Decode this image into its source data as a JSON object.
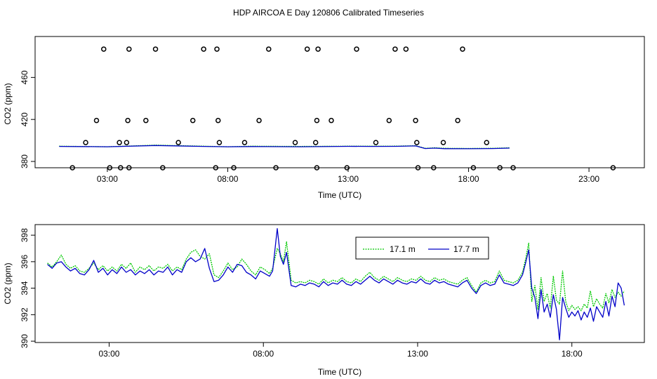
{
  "title": "HDP AIRCOA E  Day 120806  Calibrated Timeseries",
  "colors": {
    "green": "#00c800",
    "blue": "#0000c8",
    "frame": "#000000"
  },
  "chart_data": [
    {
      "type": "line",
      "xlabel": "Time (UTC)",
      "ylabel": "CO2 (ppm)",
      "xlim": [
        0,
        25.3
      ],
      "ylim": [
        374,
        499
      ],
      "x_ticks": [
        3,
        8,
        13,
        18,
        23
      ],
      "x_tick_labels": [
        "03:00",
        "08:00",
        "13:00",
        "18:00",
        "23:00"
      ],
      "y_ticks": [
        380,
        420,
        460
      ],
      "y_tick_labels": [
        "380",
        "420",
        "460"
      ],
      "calibration_points": {
        "x": [
          1.55,
          2.1,
          2.55,
          2.85,
          3.1,
          3.5,
          3.55,
          3.8,
          3.85,
          3.9,
          3.9,
          4.6,
          5.0,
          5.3,
          5.95,
          6.55,
          7.0,
          7.5,
          7.55,
          7.6,
          7.65,
          8.25,
          8.7,
          9.3,
          9.7,
          10.0,
          10.8,
          11.3,
          11.65,
          11.7,
          11.7,
          11.75,
          12.3,
          12.95,
          13.35,
          14.15,
          14.7,
          14.95,
          15.4,
          15.8,
          15.85,
          15.9,
          16.55,
          16.95,
          17.55,
          17.75,
          18.2,
          18.75,
          19.3,
          19.85,
          24.0
        ],
        "y": [
          374,
          398,
          419,
          487,
          374,
          398,
          374,
          398,
          419,
          487,
          374,
          419,
          487,
          374,
          398,
          419,
          487,
          374,
          487,
          419,
          398,
          374,
          398,
          419,
          487,
          374,
          398,
          487,
          398,
          419,
          374,
          487,
          419,
          374,
          487,
          398,
          419,
          487,
          487,
          419,
          398,
          374,
          374,
          398,
          419,
          487,
          374,
          398,
          374,
          374,
          374
        ]
      },
      "series": [
        {
          "name": "17.1 m",
          "color": "#00c800",
          "x": [
            1.0,
            3.0,
            5.0,
            7.0,
            8.0,
            9.0,
            11.0,
            13.0,
            14.0,
            15.0,
            15.8,
            16.2,
            16.6,
            17.0,
            18.0,
            19.0,
            19.7
          ],
          "values": [
            394.5,
            394.0,
            395.5,
            394.5,
            394.0,
            394.5,
            394.3,
            394.5,
            394.5,
            394.6,
            395.0,
            392.5,
            393.0,
            392.5,
            392.4,
            392.5,
            393.0
          ]
        },
        {
          "name": "17.7 m",
          "color": "#0000c8",
          "x": [
            1.0,
            3.0,
            5.0,
            7.0,
            8.0,
            9.0,
            11.0,
            13.0,
            14.0,
            15.0,
            15.8,
            16.2,
            16.6,
            17.0,
            18.0,
            19.0,
            19.7
          ],
          "values": [
            394.3,
            394.0,
            395.2,
            394.3,
            394.0,
            394.2,
            394.0,
            394.4,
            394.3,
            394.4,
            394.8,
            392.3,
            392.7,
            392.2,
            392.1,
            392.3,
            392.7
          ]
        }
      ]
    },
    {
      "type": "line",
      "xlabel": "Time (UTC)",
      "ylabel": "CO2 (ppm)",
      "xlim": [
        0.6,
        20.35
      ],
      "ylim": [
        389.9,
        398.8
      ],
      "x_ticks": [
        3,
        8,
        13,
        18
      ],
      "x_tick_labels": [
        "03:00",
        "08:00",
        "13:00",
        "18:00"
      ],
      "y_ticks": [
        390,
        392,
        394,
        396,
        398
      ],
      "y_tick_labels": [
        "390",
        "392",
        "394",
        "396",
        "398"
      ],
      "legend": {
        "position": "top-center",
        "entries": [
          "17.1 m",
          "17.7 m"
        ]
      },
      "series": [
        {
          "name": "17.1 m",
          "color": "#00c800",
          "x": [
            1.0,
            1.15,
            1.3,
            1.45,
            1.6,
            1.75,
            1.9,
            2.05,
            2.2,
            2.35,
            2.5,
            2.65,
            2.8,
            2.95,
            3.1,
            3.25,
            3.4,
            3.55,
            3.7,
            3.85,
            4.0,
            4.15,
            4.3,
            4.45,
            4.6,
            4.75,
            4.9,
            5.05,
            5.2,
            5.35,
            5.5,
            5.65,
            5.8,
            5.95,
            6.1,
            6.25,
            6.4,
            6.55,
            6.7,
            6.85,
            7.0,
            7.15,
            7.3,
            7.45,
            7.6,
            7.75,
            7.9,
            8.05,
            8.2,
            8.3,
            8.45,
            8.55,
            8.65,
            8.75,
            8.9,
            9.05,
            9.2,
            9.35,
            9.5,
            9.65,
            9.8,
            9.95,
            10.1,
            10.25,
            10.4,
            10.55,
            10.7,
            10.85,
            11.0,
            11.15,
            11.3,
            11.45,
            11.6,
            11.75,
            11.9,
            12.05,
            12.2,
            12.35,
            12.5,
            12.65,
            12.8,
            12.95,
            13.1,
            13.25,
            13.4,
            13.55,
            13.7,
            13.85,
            14.0,
            14.15,
            14.3,
            14.45,
            14.6,
            14.75,
            14.9,
            15.05,
            15.2,
            15.35,
            15.5,
            15.65,
            15.8,
            15.95,
            16.1,
            16.25,
            16.4,
            16.5,
            16.6,
            16.7,
            16.8,
            16.9,
            17.0,
            17.1,
            17.2,
            17.3,
            17.4,
            17.5,
            17.6,
            17.7,
            17.8,
            17.9,
            18.0,
            18.1,
            18.2,
            18.3,
            18.4,
            18.5,
            18.6,
            18.7,
            18.8,
            18.9,
            19.0,
            19.1,
            19.2,
            19.3,
            19.4,
            19.5,
            19.6,
            19.7
          ],
          "values": [
            395.9,
            395.6,
            396.0,
            396.5,
            395.8,
            395.5,
            395.7,
            395.3,
            395.2,
            395.5,
            395.9,
            395.4,
            395.7,
            395.3,
            395.6,
            395.3,
            395.8,
            395.5,
            395.9,
            395.2,
            395.6,
            395.4,
            395.7,
            395.3,
            395.6,
            395.5,
            395.8,
            395.3,
            395.6,
            395.4,
            396.2,
            396.7,
            396.9,
            396.4,
            396.2,
            396.6,
            395.0,
            394.8,
            395.3,
            395.9,
            395.4,
            395.6,
            396.2,
            395.8,
            395.3,
            395.0,
            395.6,
            395.4,
            395.1,
            395.5,
            397.0,
            396.6,
            396.0,
            397.5,
            394.6,
            394.4,
            394.5,
            394.4,
            394.6,
            394.5,
            394.3,
            394.7,
            394.4,
            394.6,
            394.5,
            394.8,
            394.5,
            394.4,
            394.7,
            394.5,
            394.9,
            395.2,
            394.8,
            394.6,
            394.9,
            394.7,
            394.5,
            394.8,
            394.6,
            394.5,
            394.7,
            394.6,
            394.9,
            394.6,
            394.5,
            394.8,
            394.6,
            394.7,
            394.5,
            394.4,
            394.3,
            394.6,
            394.8,
            394.2,
            393.7,
            394.4,
            394.6,
            394.4,
            394.5,
            395.3,
            394.6,
            394.5,
            394.4,
            394.6,
            395.2,
            396.2,
            397.4,
            393.0,
            394.2,
            392.4,
            394.8,
            393.0,
            393.6,
            392.5,
            394.9,
            393.1,
            392.8,
            395.3,
            393.0,
            392.3,
            392.7,
            392.4,
            392.6,
            392.3,
            392.8,
            392.5,
            393.8,
            392.6,
            393.2,
            392.8,
            392.5,
            393.6,
            392.9,
            393.9,
            393.3,
            393.7,
            393.4,
            393.8
          ]
        },
        {
          "name": "17.7 m",
          "color": "#0000c8",
          "x": [
            1.0,
            1.15,
            1.3,
            1.45,
            1.6,
            1.75,
            1.9,
            2.05,
            2.2,
            2.35,
            2.5,
            2.65,
            2.8,
            2.95,
            3.1,
            3.25,
            3.4,
            3.55,
            3.7,
            3.85,
            4.0,
            4.15,
            4.3,
            4.45,
            4.6,
            4.75,
            4.9,
            5.05,
            5.2,
            5.35,
            5.5,
            5.65,
            5.8,
            5.95,
            6.1,
            6.25,
            6.4,
            6.55,
            6.7,
            6.85,
            7.0,
            7.15,
            7.3,
            7.45,
            7.6,
            7.75,
            7.9,
            8.05,
            8.2,
            8.3,
            8.45,
            8.55,
            8.65,
            8.75,
            8.9,
            9.05,
            9.2,
            9.35,
            9.5,
            9.65,
            9.8,
            9.95,
            10.1,
            10.25,
            10.4,
            10.55,
            10.7,
            10.85,
            11.0,
            11.15,
            11.3,
            11.45,
            11.6,
            11.75,
            11.9,
            12.05,
            12.2,
            12.35,
            12.5,
            12.65,
            12.8,
            12.95,
            13.1,
            13.25,
            13.4,
            13.55,
            13.7,
            13.85,
            14.0,
            14.15,
            14.3,
            14.45,
            14.6,
            14.75,
            14.9,
            15.05,
            15.2,
            15.35,
            15.5,
            15.65,
            15.8,
            15.95,
            16.1,
            16.25,
            16.4,
            16.5,
            16.6,
            16.7,
            16.8,
            16.9,
            17.0,
            17.1,
            17.2,
            17.3,
            17.4,
            17.5,
            17.6,
            17.7,
            17.8,
            17.9,
            18.0,
            18.1,
            18.2,
            18.3,
            18.4,
            18.5,
            18.6,
            18.7,
            18.8,
            18.9,
            19.0,
            19.1,
            19.2,
            19.3,
            19.4,
            19.5,
            19.6,
            19.7
          ],
          "values": [
            395.8,
            395.5,
            395.9,
            396.0,
            395.6,
            395.3,
            395.5,
            395.1,
            395.0,
            395.4,
            396.1,
            395.2,
            395.5,
            395.0,
            395.4,
            395.1,
            395.6,
            395.2,
            395.4,
            395.0,
            395.3,
            395.1,
            395.4,
            395.0,
            395.3,
            395.2,
            395.6,
            395.0,
            395.4,
            395.2,
            396.0,
            396.3,
            396.0,
            396.2,
            397.0,
            395.5,
            394.5,
            394.6,
            395.0,
            395.6,
            395.2,
            395.8,
            395.7,
            395.2,
            395.0,
            394.7,
            395.3,
            395.1,
            394.9,
            395.3,
            398.5,
            396.4,
            395.8,
            396.7,
            394.2,
            394.1,
            394.3,
            394.2,
            394.4,
            394.3,
            394.1,
            394.5,
            394.2,
            394.4,
            394.3,
            394.6,
            394.3,
            394.2,
            394.5,
            394.3,
            394.6,
            394.9,
            394.6,
            394.4,
            394.7,
            394.5,
            394.3,
            394.6,
            394.4,
            394.3,
            394.5,
            394.4,
            394.7,
            394.4,
            394.3,
            394.6,
            394.4,
            394.5,
            394.3,
            394.2,
            394.1,
            394.4,
            394.6,
            394.0,
            393.6,
            394.2,
            394.4,
            394.2,
            394.3,
            395.0,
            394.4,
            394.3,
            394.2,
            394.4,
            395.0,
            395.9,
            396.9,
            394.0,
            393.3,
            391.7,
            393.9,
            392.2,
            392.8,
            391.8,
            393.5,
            392.4,
            390.1,
            393.3,
            392.5,
            391.8,
            392.2,
            391.9,
            392.3,
            391.6,
            392.2,
            391.8,
            392.5,
            391.5,
            392.6,
            392.2,
            391.8,
            393.0,
            391.9,
            393.4,
            392.6,
            394.4,
            394.0,
            392.7
          ]
        }
      ]
    }
  ]
}
